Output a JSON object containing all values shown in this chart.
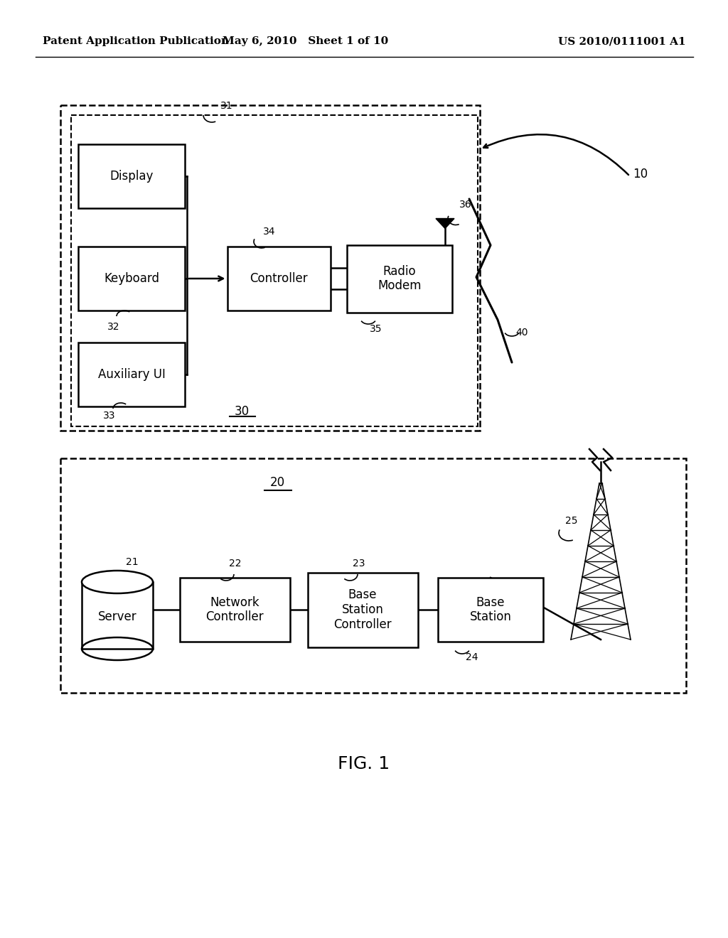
{
  "bg_color": "#ffffff",
  "header_left": "Patent Application Publication",
  "header_center": "May 6, 2010   Sheet 1 of 10",
  "header_right": "US 2010/0111001 A1",
  "fig_label": "FIG. 1",
  "font_size_header": 11,
  "font_size_box": 12,
  "font_size_num": 10,
  "font_size_fig": 16
}
